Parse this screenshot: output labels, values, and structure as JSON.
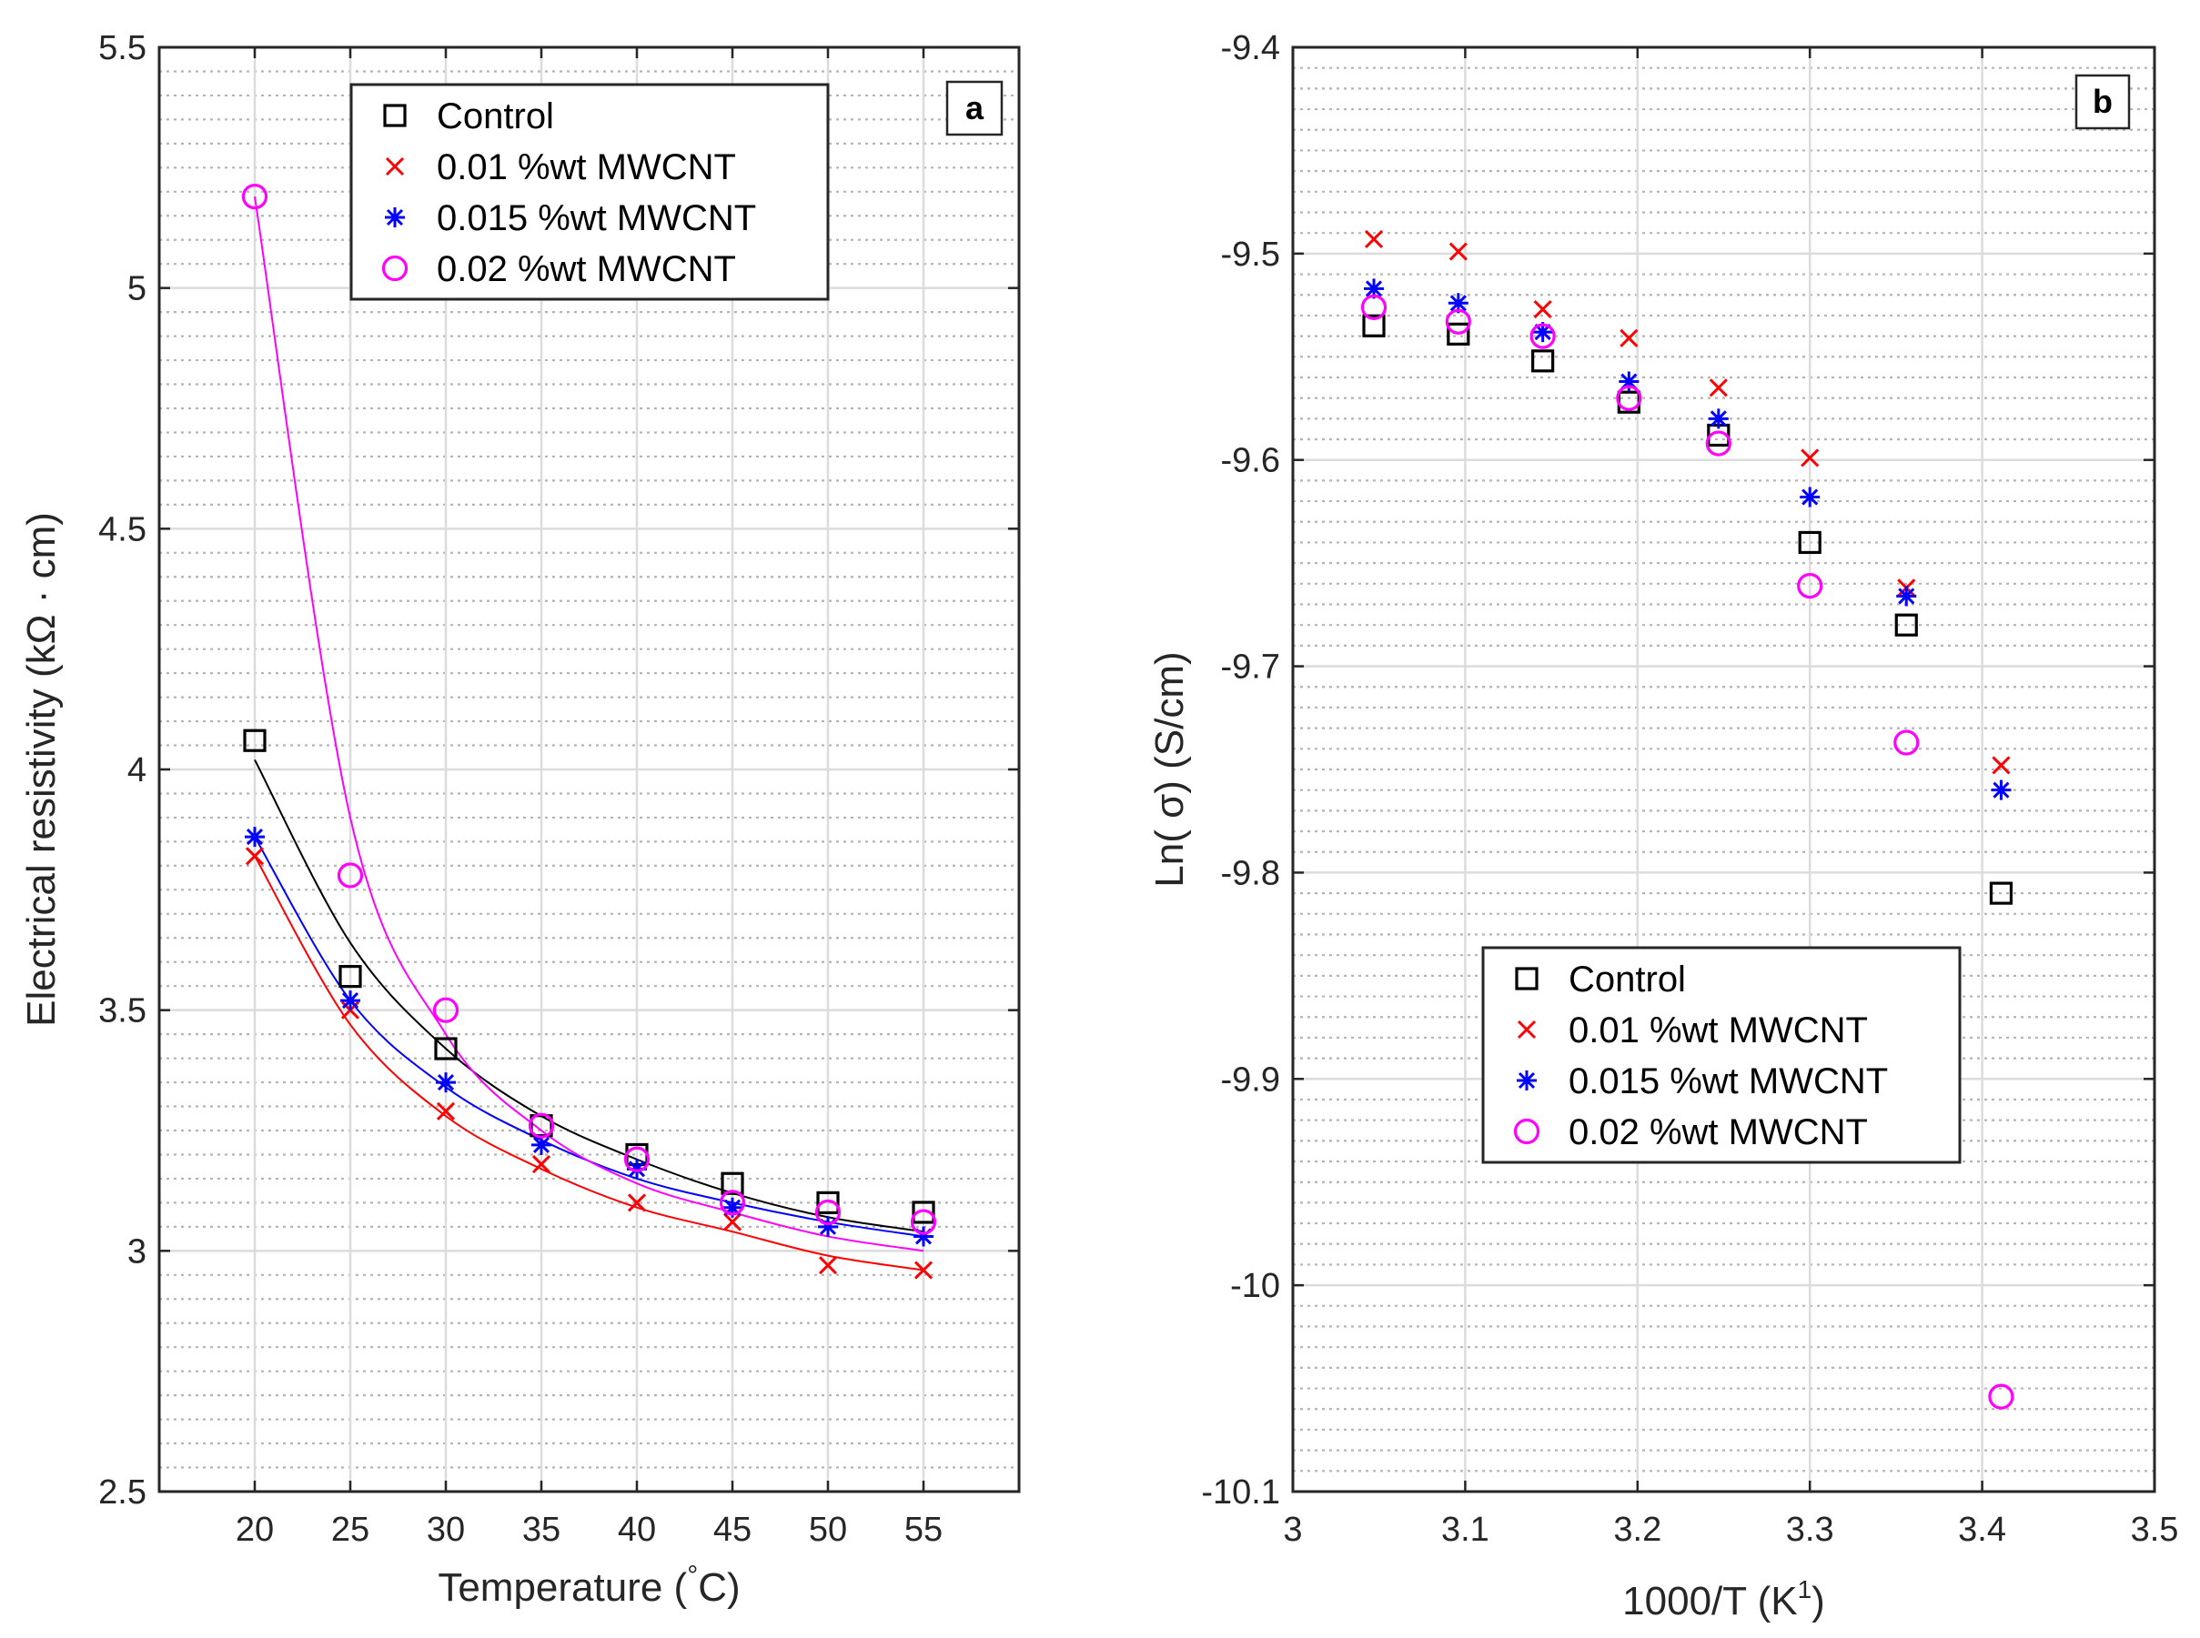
{
  "chart_data": [
    {
      "id": "a",
      "panel_label": "a",
      "type": "scatter",
      "xlabel_main": "Temperature (",
      "xlabel_deg": "°",
      "xlabel_unit": "C)",
      "ylabel": "Electrical resistivity (kΩ · cm)",
      "xlim": [
        15,
        60
      ],
      "ylim": [
        2.5,
        5.5
      ],
      "xticks": [
        20,
        25,
        30,
        35,
        40,
        45,
        50,
        55
      ],
      "xtick_labels": [
        "20",
        "25",
        "30",
        "35",
        "40",
        "45",
        "50",
        "55"
      ],
      "yticks": [
        2.5,
        3,
        3.5,
        4,
        4.5,
        5,
        5.5
      ],
      "ytick_labels": [
        "2.5",
        "3",
        "3.5",
        "4",
        "4.5",
        "5",
        "5.5"
      ],
      "grid": true,
      "minor_grid": true,
      "legend_position": "top-center",
      "x": [
        20,
        25,
        30,
        35,
        40,
        45,
        50,
        55
      ],
      "series": [
        {
          "name": "Control",
          "marker": "square",
          "color": "#000000",
          "values": [
            4.06,
            3.57,
            3.42,
            3.26,
            3.2,
            3.14,
            3.1,
            3.08
          ],
          "fit": [
            4.02,
            3.64,
            3.42,
            3.28,
            3.19,
            3.12,
            3.07,
            3.04
          ]
        },
        {
          "name": "0.01 %wt MWCNT",
          "marker": "x",
          "color": "#ff0000",
          "values": [
            3.82,
            3.5,
            3.29,
            3.18,
            3.1,
            3.06,
            2.97,
            2.96
          ],
          "fit": [
            3.82,
            3.47,
            3.28,
            3.17,
            3.09,
            3.04,
            2.99,
            2.96
          ]
        },
        {
          "name": "0.015 %wt MWCNT",
          "marker": "asterisk",
          "color": "#0000ff",
          "values": [
            3.86,
            3.52,
            3.35,
            3.22,
            3.17,
            3.09,
            3.05,
            3.03
          ],
          "fit": [
            3.86,
            3.52,
            3.34,
            3.23,
            3.15,
            3.1,
            3.06,
            3.03
          ]
        },
        {
          "name": "0.02 %wt MWCNT",
          "marker": "circle",
          "color": "#ff00ff",
          "values": [
            5.19,
            3.78,
            3.5,
            3.26,
            3.19,
            3.1,
            3.08,
            3.06
          ],
          "fit": [
            5.19,
            3.9,
            3.45,
            3.25,
            3.14,
            3.08,
            3.03,
            3.0
          ]
        }
      ]
    },
    {
      "id": "b",
      "panel_label": "b",
      "type": "scatter",
      "xlabel_main": "1000/T (K",
      "xlabel_sup": "1",
      "xlabel_unit": ")",
      "ylabel": "Ln( σ) (S/cm)",
      "xlim": [
        3.0,
        3.5
      ],
      "ylim": [
        -10.1,
        -9.4
      ],
      "xticks": [
        3.0,
        3.1,
        3.2,
        3.3,
        3.4,
        3.5
      ],
      "xtick_labels": [
        "3",
        "3.1",
        "3.2",
        "3.3",
        "3.4",
        "3.5"
      ],
      "yticks": [
        -10.1,
        -10.0,
        -9.9,
        -9.8,
        -9.7,
        -9.6,
        -9.5,
        -9.4
      ],
      "ytick_labels": [
        "-10.1",
        "-10",
        "-9.9",
        "-9.8",
        "-9.7",
        "-9.6",
        "-9.5",
        "-9.4"
      ],
      "grid": true,
      "minor_grid": true,
      "legend_position": "lower-center",
      "x": [
        3.047,
        3.096,
        3.145,
        3.195,
        3.247,
        3.3,
        3.356,
        3.411
      ],
      "series": [
        {
          "name": "Control",
          "marker": "square",
          "color": "#000000",
          "values": [
            -9.535,
            -9.539,
            -9.552,
            -9.572,
            -9.588,
            -9.64,
            -9.68,
            -9.81
          ]
        },
        {
          "name": "0.01 %wt MWCNT",
          "marker": "x",
          "color": "#ff0000",
          "values": [
            -9.493,
            -9.499,
            -9.527,
            -9.541,
            -9.565,
            -9.599,
            -9.662,
            -9.748
          ]
        },
        {
          "name": "0.015 %wt MWCNT",
          "marker": "asterisk",
          "color": "#0000ff",
          "values": [
            -9.517,
            -9.524,
            -9.538,
            -9.562,
            -9.58,
            -9.618,
            -9.666,
            -9.76
          ]
        },
        {
          "name": "0.02 %wt MWCNT",
          "marker": "circle",
          "color": "#ff00ff",
          "values": [
            -9.526,
            -9.533,
            -9.54,
            -9.57,
            -9.592,
            -9.661,
            -9.737,
            -10.054
          ]
        }
      ]
    }
  ]
}
